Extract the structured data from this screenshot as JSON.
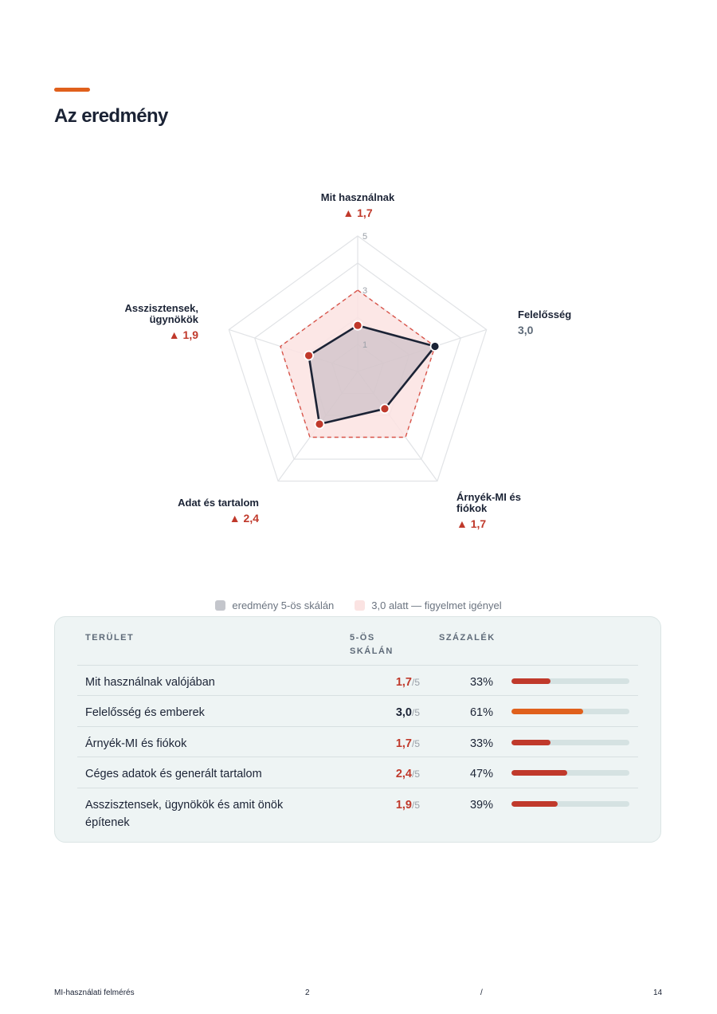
{
  "page": {
    "title": "Az eredmény"
  },
  "chart_data": {
    "type": "radar",
    "scale_min": 0,
    "scale_max": 5,
    "scale_labels": [
      "1",
      "3",
      "5"
    ],
    "threshold": 3.0,
    "axes": [
      {
        "label": "Mit használnak",
        "value": 1.7,
        "display": "▲ 1,7",
        "below": true
      },
      {
        "label": "Felelősség",
        "value": 3.0,
        "display": "3,0",
        "below": false
      },
      {
        "label": "Árnyék-MI és fiókok",
        "value": 1.7,
        "display": "▲ 1,7",
        "below": true
      },
      {
        "label": "Adat és tartalom",
        "value": 2.4,
        "display": "▲ 2,4",
        "below": true
      },
      {
        "label": "Asszisztensek, ügynökök",
        "value": 1.9,
        "display": "▲ 1,9",
        "below": true
      }
    ],
    "legend": [
      "eredmény 5-ös skálán",
      "3,0 alatt — figyelmet igényel"
    ],
    "colors": {
      "alert": "#c0392b",
      "ok": "#1b2335",
      "neutral": "#5e6a78",
      "threshold_fill": "#fbe3e2",
      "orange": "#e0601c"
    }
  },
  "table": {
    "headers": {
      "area": "TERÜLET",
      "scale": "5-ÖS SKÁLÁN",
      "percent": "SZÁZALÉK"
    },
    "rows": [
      {
        "area": "Mit használnak valójában",
        "score": "1,7",
        "den": "/5",
        "percent": "33%",
        "pct_value": 33,
        "alert": true
      },
      {
        "area": "Felelősség és emberek",
        "score": "3,0",
        "den": "/5",
        "percent": "61%",
        "pct_value": 61,
        "alert": false
      },
      {
        "area": "Árnyék-MI és fiókok",
        "score": "1,7",
        "den": "/5",
        "percent": "33%",
        "pct_value": 33,
        "alert": true
      },
      {
        "area": "Céges adatok és generált tartalom",
        "score": "2,4",
        "den": "/5",
        "percent": "47%",
        "pct_value": 47,
        "alert": true
      },
      {
        "area": "Asszisztensek, ügynökök és amit önök építenek",
        "score": "1,9",
        "den": "/5",
        "percent": "39%",
        "pct_value": 39,
        "alert": true
      }
    ]
  },
  "footer": {
    "left": "MI-használati felmérés",
    "page": "2",
    "sep": "/",
    "total": "14"
  }
}
